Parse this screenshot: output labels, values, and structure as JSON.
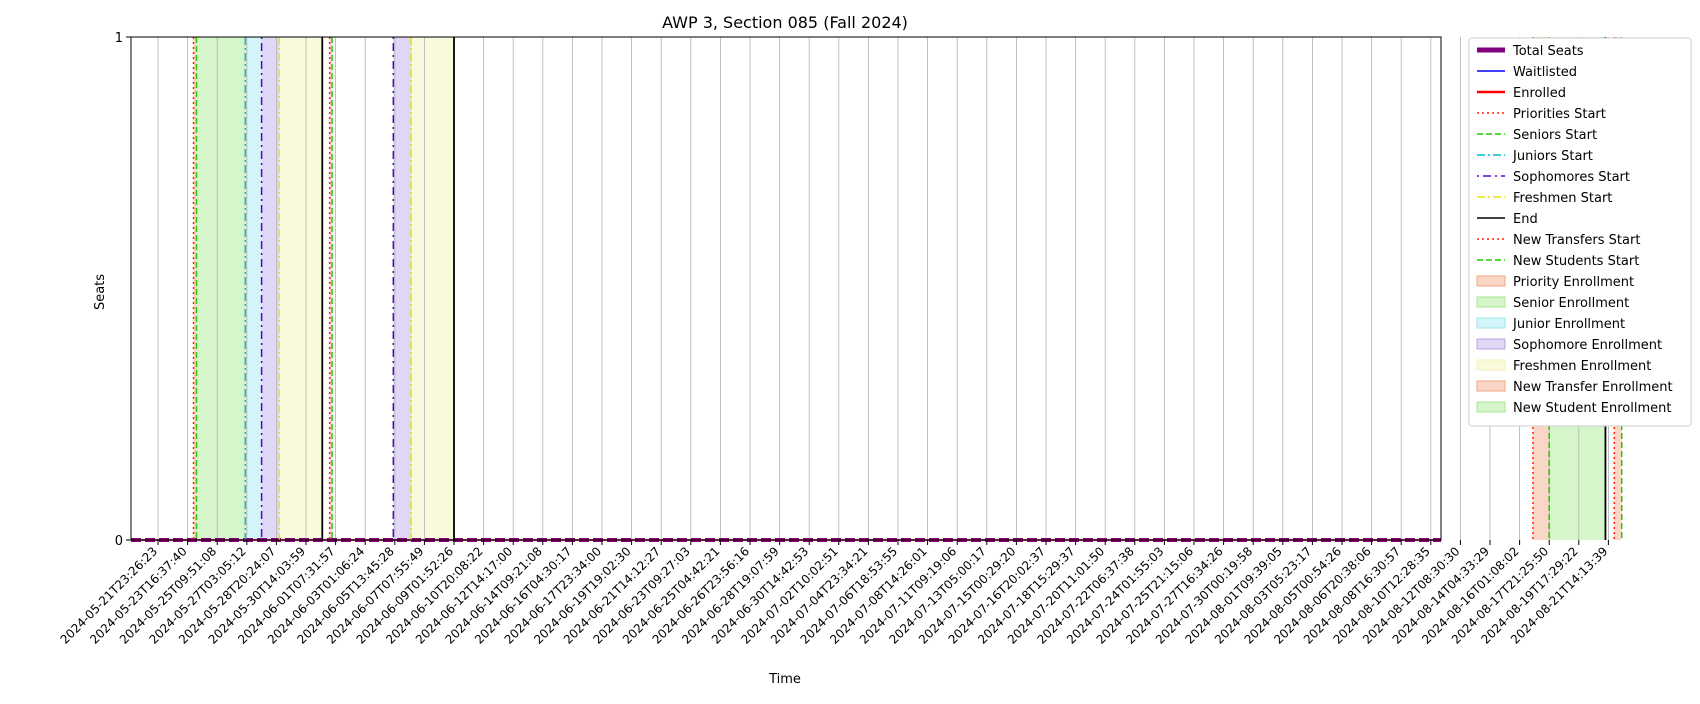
{
  "chart_data": {
    "type": "line",
    "title": "AWP 3, Section 085 (Fall 2024)",
    "xlabel": "Time",
    "ylabel": "Seats",
    "ylim": [
      0,
      1
    ],
    "y_ticks": [
      "0",
      "1"
    ],
    "x_ticks": [
      "2024-05-21T23:26:23",
      "2024-05-23T16:37:40",
      "2024-05-25T09:51:08",
      "2024-05-27T03:05:12",
      "2024-05-28T20:24:07",
      "2024-05-30T14:03:59",
      "2024-06-01T07:31:57",
      "2024-06-03T01:06:24",
      "2024-06-05T13:45:28",
      "2024-06-07T07:55:49",
      "2024-06-09T01:52:26",
      "2024-06-10T20:08:22",
      "2024-06-12T14:17:00",
      "2024-06-14T09:21:08",
      "2024-06-16T04:30:17",
      "2024-06-17T23:34:00",
      "2024-06-19T19:02:30",
      "2024-06-21T14:12:27",
      "2024-06-23T09:27:03",
      "2024-06-25T04:42:21",
      "2024-06-26T23:56:16",
      "2024-06-28T19:07:59",
      "2024-06-30T14:42:53",
      "2024-07-02T10:02:51",
      "2024-07-04T23:34:21",
      "2024-07-06T18:53:55",
      "2024-07-08T14:26:01",
      "2024-07-11T09:19:06",
      "2024-07-13T05:00:17",
      "2024-07-15T00:29:20",
      "2024-07-16T20:02:37",
      "2024-07-18T15:29:37",
      "2024-07-20T11:01:50",
      "2024-07-22T06:37:38",
      "2024-07-24T01:55:03",
      "2024-07-25T21:15:06",
      "2024-07-27T16:34:26",
      "2024-07-30T00:19:58",
      "2024-08-01T09:39:05",
      "2024-08-03T05:23:17",
      "2024-08-05T00:54:26",
      "2024-08-06T20:38:06",
      "2024-08-08T16:30:57",
      "2024-08-10T12:28:35",
      "2024-08-12T08:30:30",
      "2024-08-14T04:33:29",
      "2024-08-16T01:08:02",
      "2024-08-17T21:25:50",
      "2024-08-19T17:29:22",
      "2024-08-21T14:13:39"
    ],
    "x_range_ticks": [
      -0.05,
      50.3
    ],
    "series": [
      {
        "name": "Total Seats",
        "value": 0,
        "color": "#800080",
        "style": "dashed-thick"
      },
      {
        "name": "Waitlisted",
        "value": 0,
        "color": "#0000ff",
        "style": "solid"
      },
      {
        "name": "Enrolled",
        "value": 0,
        "color": "#ff0000",
        "style": "solid"
      }
    ],
    "period_lines": [
      {
        "name": "Priorities Start",
        "tick": 1.2,
        "color": "#ff2200",
        "style": "dotted"
      },
      {
        "name": "Seniors Start",
        "tick": 1.3,
        "color": "#22cc00",
        "style": "dashed"
      },
      {
        "name": "Juniors Start",
        "tick": 2.95,
        "color": "#00bcd4",
        "style": "dashdot"
      },
      {
        "name": "Sophomores Start",
        "tick": 3.5,
        "color": "#5500dd",
        "style": "dashdot2"
      },
      {
        "name": "Freshmen Start",
        "tick": 4.1,
        "color": "#e6e600",
        "style": "dashdot"
      },
      {
        "name": "End",
        "tick": 5.55,
        "color": "#000000",
        "style": "solid"
      },
      {
        "name": "Seniors Start (restart)",
        "tick": 5.88,
        "color": "#22cc00",
        "style": "dashed"
      },
      {
        "name": "Priorities Start (restart)",
        "tick": 5.8,
        "color": "#ff2200",
        "style": "dotted"
      },
      {
        "name": "Sophomores Start (restart)",
        "tick": 7.95,
        "color": "#5500dd",
        "style": "dashdot2"
      },
      {
        "name": "Freshmen Start (restart)",
        "tick": 8.55,
        "color": "#e6e600",
        "style": "dashdot"
      },
      {
        "name": "End (restart)",
        "tick": 10.0,
        "color": "#000000",
        "style": "solid"
      },
      {
        "name": "New Transfers Start",
        "tick": 46.45,
        "color": "#ff2200",
        "style": "dotted"
      },
      {
        "name": "New Students Start",
        "tick": 47.0,
        "color": "#22cc00",
        "style": "dashed"
      },
      {
        "name": "End (new)",
        "tick": 48.9,
        "color": "#000000",
        "style": "solid"
      },
      {
        "name": "New Transfers Start (2)",
        "tick": 49.2,
        "color": "#ff2200",
        "style": "dotted"
      },
      {
        "name": "New Students Start (2)",
        "tick": 49.45,
        "color": "#22cc00",
        "style": "dashed"
      }
    ],
    "periods": [
      {
        "name": "Priority Enrollment",
        "start": 1.2,
        "end": 1.3,
        "color": "#f4a582"
      },
      {
        "name": "Senior Enrollment",
        "start": 1.3,
        "end": 2.95,
        "color": "#a6e88c"
      },
      {
        "name": "Junior Enrollment",
        "start": 2.95,
        "end": 3.5,
        "color": "#9ee8ee"
      },
      {
        "name": "Sophomore Enrollment",
        "start": 3.5,
        "end": 4.1,
        "color": "#bba3e8"
      },
      {
        "name": "Freshmen Enrollment",
        "start": 4.1,
        "end": 5.55,
        "color": "#f2f2b0"
      },
      {
        "name": "Priority Enrollment (2)",
        "start": 5.8,
        "end": 5.88,
        "color": "#f4a582"
      },
      {
        "name": "Sophomore Enrollment (2)",
        "start": 7.95,
        "end": 8.55,
        "color": "#bba3e8"
      },
      {
        "name": "Freshmen Enrollment (2)",
        "start": 8.55,
        "end": 10.0,
        "color": "#f2f2b0"
      },
      {
        "name": "New Transfer Enrollment",
        "start": 46.45,
        "end": 47.0,
        "color": "#f4a582"
      },
      {
        "name": "New Student Enrollment",
        "start": 47.0,
        "end": 48.9,
        "color": "#a6e88c"
      },
      {
        "name": "New Transfer Enrollment (2)",
        "start": 49.2,
        "end": 49.45,
        "color": "#f4a582"
      }
    ],
    "legend": {
      "position": "outside-top-right",
      "entries": [
        {
          "label": "Total Seats",
          "kind": "line",
          "color": "#800080",
          "style": "thick"
        },
        {
          "label": "Waitlisted",
          "kind": "line",
          "color": "#0000ff",
          "style": "solid"
        },
        {
          "label": "Enrolled",
          "kind": "line",
          "color": "#ff0000",
          "style": "solid-thick"
        },
        {
          "label": "Priorities Start",
          "kind": "line",
          "color": "#ff2200",
          "style": "dotted"
        },
        {
          "label": "Seniors Start",
          "kind": "line",
          "color": "#22cc00",
          "style": "dashed"
        },
        {
          "label": "Juniors Start",
          "kind": "line",
          "color": "#00bcd4",
          "style": "dashdot"
        },
        {
          "label": "Sophomores Start",
          "kind": "line",
          "color": "#5500dd",
          "style": "dashdot2"
        },
        {
          "label": "Freshmen Start",
          "kind": "line",
          "color": "#e6e600",
          "style": "dashdot"
        },
        {
          "label": "End",
          "kind": "line",
          "color": "#000000",
          "style": "solid"
        },
        {
          "label": "New Transfers Start",
          "kind": "line",
          "color": "#ff2200",
          "style": "dotted"
        },
        {
          "label": "New Students Start",
          "kind": "line",
          "color": "#22cc00",
          "style": "dashed"
        },
        {
          "label": "Priority Enrollment",
          "kind": "patch",
          "color": "#f4a582"
        },
        {
          "label": "Senior Enrollment",
          "kind": "patch",
          "color": "#a6e88c"
        },
        {
          "label": "Junior Enrollment",
          "kind": "patch",
          "color": "#9ee8ee"
        },
        {
          "label": "Sophomore Enrollment",
          "kind": "patch",
          "color": "#bba3e8"
        },
        {
          "label": "Freshmen Enrollment",
          "kind": "patch",
          "color": "#f2f2b0"
        },
        {
          "label": "New Transfer Enrollment",
          "kind": "patch",
          "color": "#f4a582"
        },
        {
          "label": "New Student Enrollment",
          "kind": "patch",
          "color": "#a6e88c"
        }
      ]
    },
    "grid": true
  }
}
